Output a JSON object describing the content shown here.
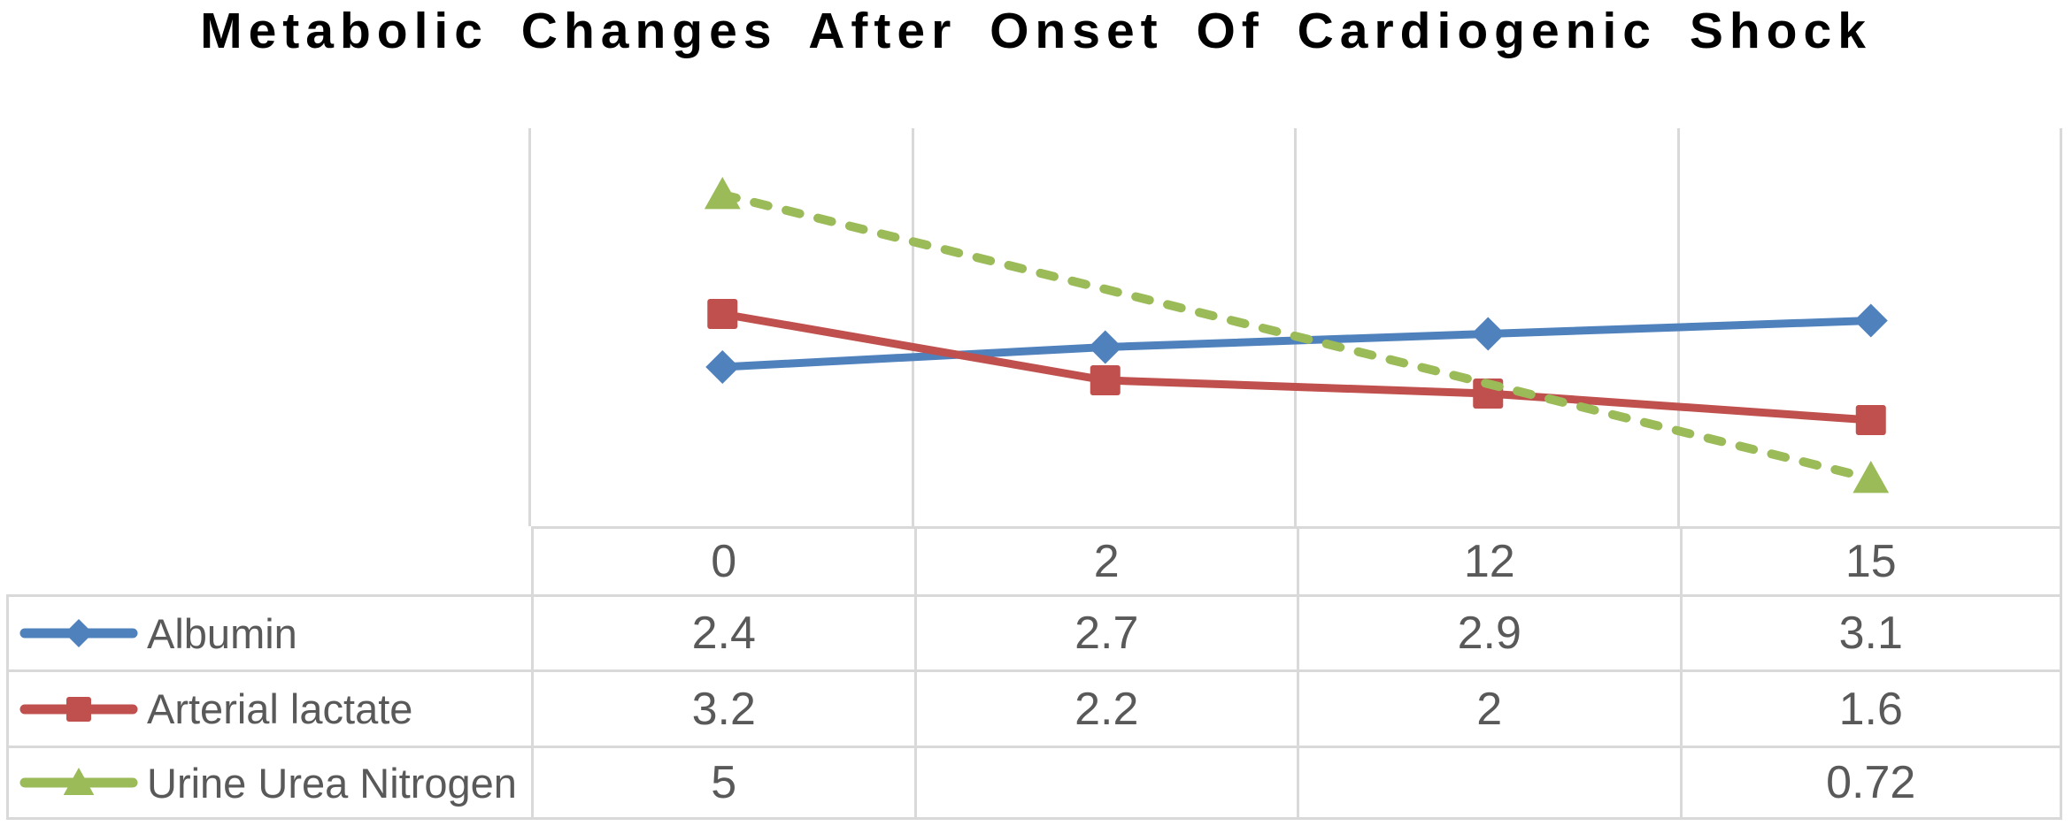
{
  "title": "Metabolic Changes After Onset Of Cardiogenic Shock",
  "colors": {
    "albumin": "#4F81BD",
    "arterial_lactate": "#C0504D",
    "urine_urea_nitrogen": "#9BBB59",
    "gridline": "#D9D9D9",
    "table_text": "#595959",
    "title_text": "#000000",
    "background": "#FFFFFF"
  },
  "chart_data": {
    "type": "line",
    "title": "Metabolic Changes After Onset Of Cardiogenic Shock",
    "categories": [
      "0",
      "2",
      "12",
      "15"
    ],
    "series": [
      {
        "name": "Albumin",
        "color": "#4F81BD",
        "marker": "diamond",
        "line_style": "solid",
        "values": [
          2.4,
          2.7,
          2.9,
          3.1
        ]
      },
      {
        "name": "Arterial lactate",
        "color": "#C0504D",
        "marker": "square",
        "line_style": "solid",
        "values": [
          3.2,
          2.2,
          2,
          1.6
        ]
      },
      {
        "name": "Urine Urea Nitrogen",
        "color": "#9BBB59",
        "marker": "triangle",
        "line_style": "dashed",
        "values": [
          5,
          null,
          null,
          0.72
        ]
      }
    ],
    "xlabel": "",
    "ylabel": "",
    "ylim": [
      0,
      6
    ],
    "grid": "vertical-only",
    "legend_position": "data-table-left-column",
    "data_table": {
      "header": [
        "0",
        "2",
        "12",
        "15"
      ],
      "rows": [
        {
          "label": "Albumin",
          "cells": [
            "2.4",
            "2.7",
            "2.9",
            "3.1"
          ]
        },
        {
          "label": "Arterial lactate",
          "cells": [
            "3.2",
            "2.2",
            "2",
            "1.6"
          ]
        },
        {
          "label": "Urine Urea Nitrogen",
          "cells": [
            "5",
            "",
            "",
            "0.72"
          ]
        }
      ]
    }
  }
}
